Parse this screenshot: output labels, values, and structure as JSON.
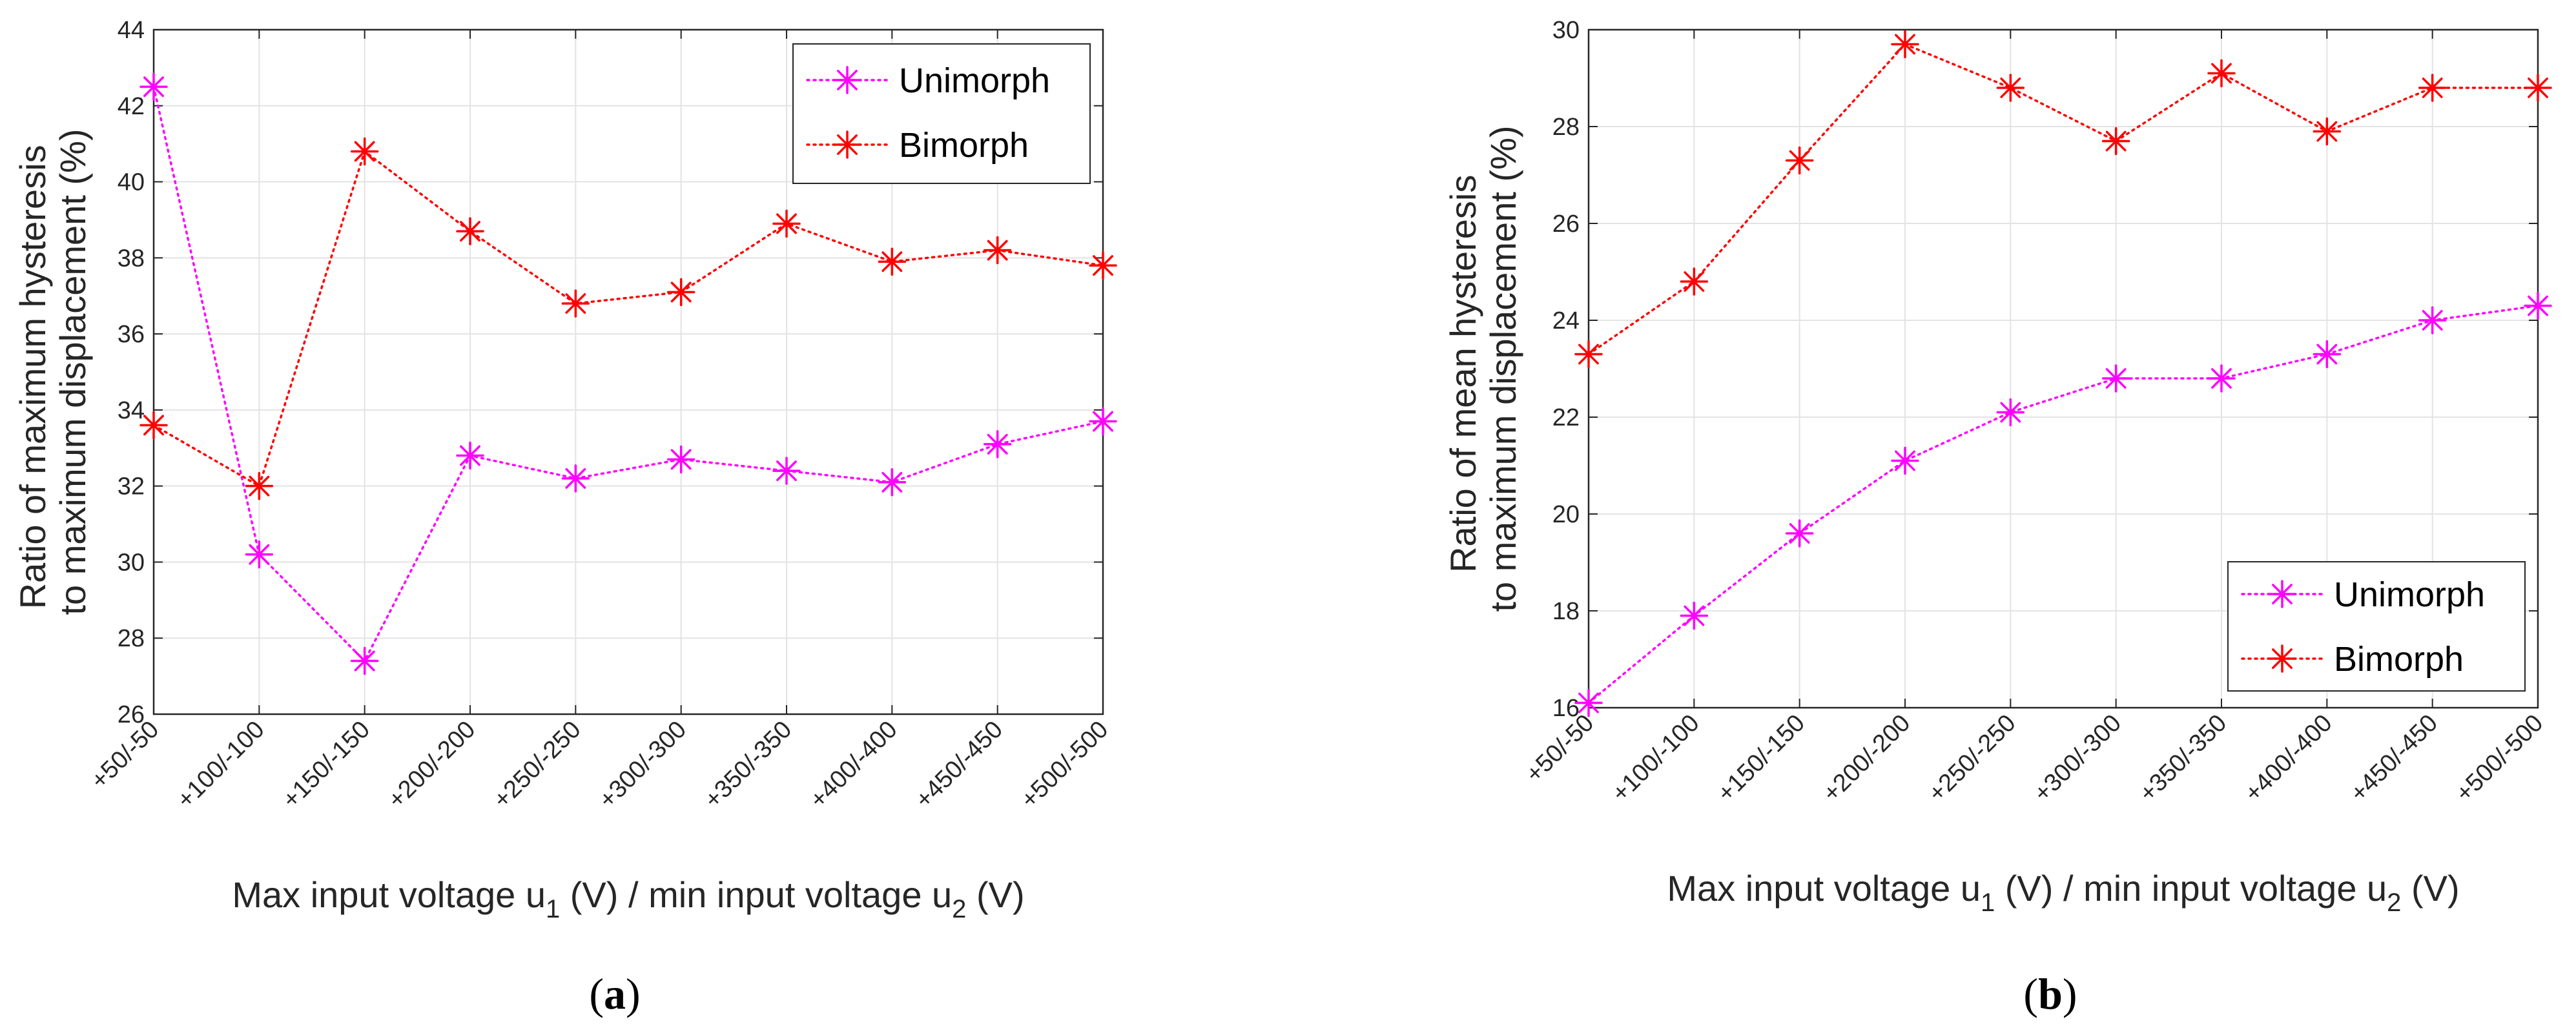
{
  "chart_data": [
    {
      "type": "line",
      "panel_label_open": "(",
      "panel_label_letter": "a",
      "panel_label_close": ")",
      "categories": [
        "+50/-50",
        "+100/-100",
        "+150/-150",
        "+200/-200",
        "+250/-250",
        "+300/-300",
        "+350/-350",
        "+400/-400",
        "+450/-450",
        "+500/-500"
      ],
      "ylabel_line1": "Ratio of maximum hysteresis",
      "ylabel_line2": "to maximum displacement (%)",
      "xlabel": {
        "pre": "Max input voltage u",
        "sub1": "1",
        "mid": " (V) / min input voltage u",
        "sub2": "2",
        "post": " (V)"
      },
      "ylim": [
        26,
        44
      ],
      "yticks": [
        26,
        28,
        30,
        32,
        34,
        36,
        38,
        40,
        42,
        44
      ],
      "grid": true,
      "legend": "top-right",
      "series": [
        {
          "name": "Unimorph",
          "color": "#ff00ff",
          "values": [
            42.5,
            30.2,
            27.4,
            32.8,
            32.2,
            32.7,
            32.4,
            32.1,
            33.1,
            33.7
          ]
        },
        {
          "name": "Bimorph",
          "color": "#ff0000",
          "values": [
            33.6,
            32.0,
            40.8,
            38.7,
            36.8,
            37.1,
            38.9,
            37.9,
            38.2,
            37.8
          ]
        }
      ]
    },
    {
      "type": "line",
      "panel_label_open": "(",
      "panel_label_letter": "b",
      "panel_label_close": ")",
      "categories": [
        "+50/-50",
        "+100/-100",
        "+150/-150",
        "+200/-200",
        "+250/-250",
        "+300/-300",
        "+350/-350",
        "+400/-400",
        "+450/-450",
        "+500/-500"
      ],
      "ylabel_line1": "Ratio of mean hysteresis",
      "ylabel_line2": "to maximum displacement (%)",
      "xlabel": {
        "pre": "Max input voltage u",
        "sub1": "1",
        "mid": " (V) / min input voltage u",
        "sub2": "2",
        "post": " (V)"
      },
      "ylim": [
        16,
        30
      ],
      "yticks": [
        16,
        18,
        20,
        22,
        24,
        26,
        28,
        30
      ],
      "grid": true,
      "legend": "bottom-right",
      "series": [
        {
          "name": "Unimorph",
          "color": "#ff00ff",
          "values": [
            16.1,
            17.9,
            19.6,
            21.1,
            22.1,
            22.8,
            22.8,
            23.3,
            24.0,
            24.3
          ]
        },
        {
          "name": "Bimorph",
          "color": "#ff0000",
          "values": [
            23.3,
            24.8,
            27.3,
            29.7,
            28.8,
            27.7,
            29.1,
            27.9,
            28.8,
            28.8
          ]
        }
      ]
    }
  ]
}
